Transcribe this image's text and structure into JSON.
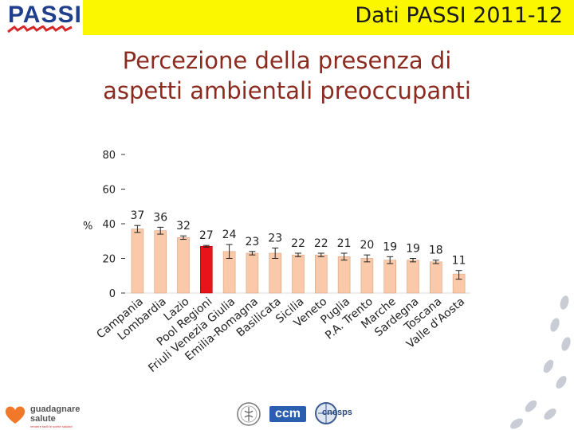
{
  "header": {
    "logo_text": "PASSI",
    "title": "Dati PASSI 2011-12"
  },
  "slide": {
    "title_line1": "Percezione della presenza di",
    "title_line2": "aspetti ambientali preoccupanti"
  },
  "chart_data": {
    "type": "bar",
    "ylabel": "%",
    "ylim": [
      0,
      80
    ],
    "yticks": [
      "0",
      "20",
      "40",
      "60",
      "80"
    ],
    "categories": [
      "Campania",
      "Lombardia",
      "Lazio",
      "Pool Regioni",
      "Friuli Venezia Giulia",
      "Emilia-Romagna",
      "Basilicata",
      "Sicilia",
      "Veneto",
      "Puglia",
      "P.A. Trento",
      "Marche",
      "Sardegna",
      "Toscana",
      "Valle d'Aosta"
    ],
    "values": [
      37,
      36,
      32,
      27,
      24,
      23,
      23,
      22,
      22,
      21,
      20,
      19,
      19,
      18,
      11
    ],
    "value_labels": [
      "37",
      "36",
      "32",
      "27",
      "24",
      "23",
      "23",
      "22",
      "22",
      "21",
      "20",
      "19",
      "19",
      "18",
      "11"
    ],
    "ci_low": [
      35,
      34,
      31,
      26.5,
      20,
      22,
      20,
      21,
      21,
      19,
      18,
      17,
      18,
      17,
      8
    ],
    "ci_high": [
      39,
      38,
      33,
      27.5,
      28,
      24,
      26,
      23,
      23,
      23,
      22,
      21,
      20,
      19,
      13
    ],
    "highlight_category": "Pool Regioni",
    "colors": {
      "bar": "#f9c9a9",
      "bar_stroke": "#d8a380",
      "highlight": "#e8141a",
      "axis": "#333333",
      "text": "#222222"
    }
  },
  "footer": {
    "logo1_line1": "guadagnare",
    "logo1_line2": "salute",
    "logo1_tagline": "rendere facili le scelte salutari",
    "logo3_text": "ccm",
    "logo4_text": "cnesps"
  }
}
